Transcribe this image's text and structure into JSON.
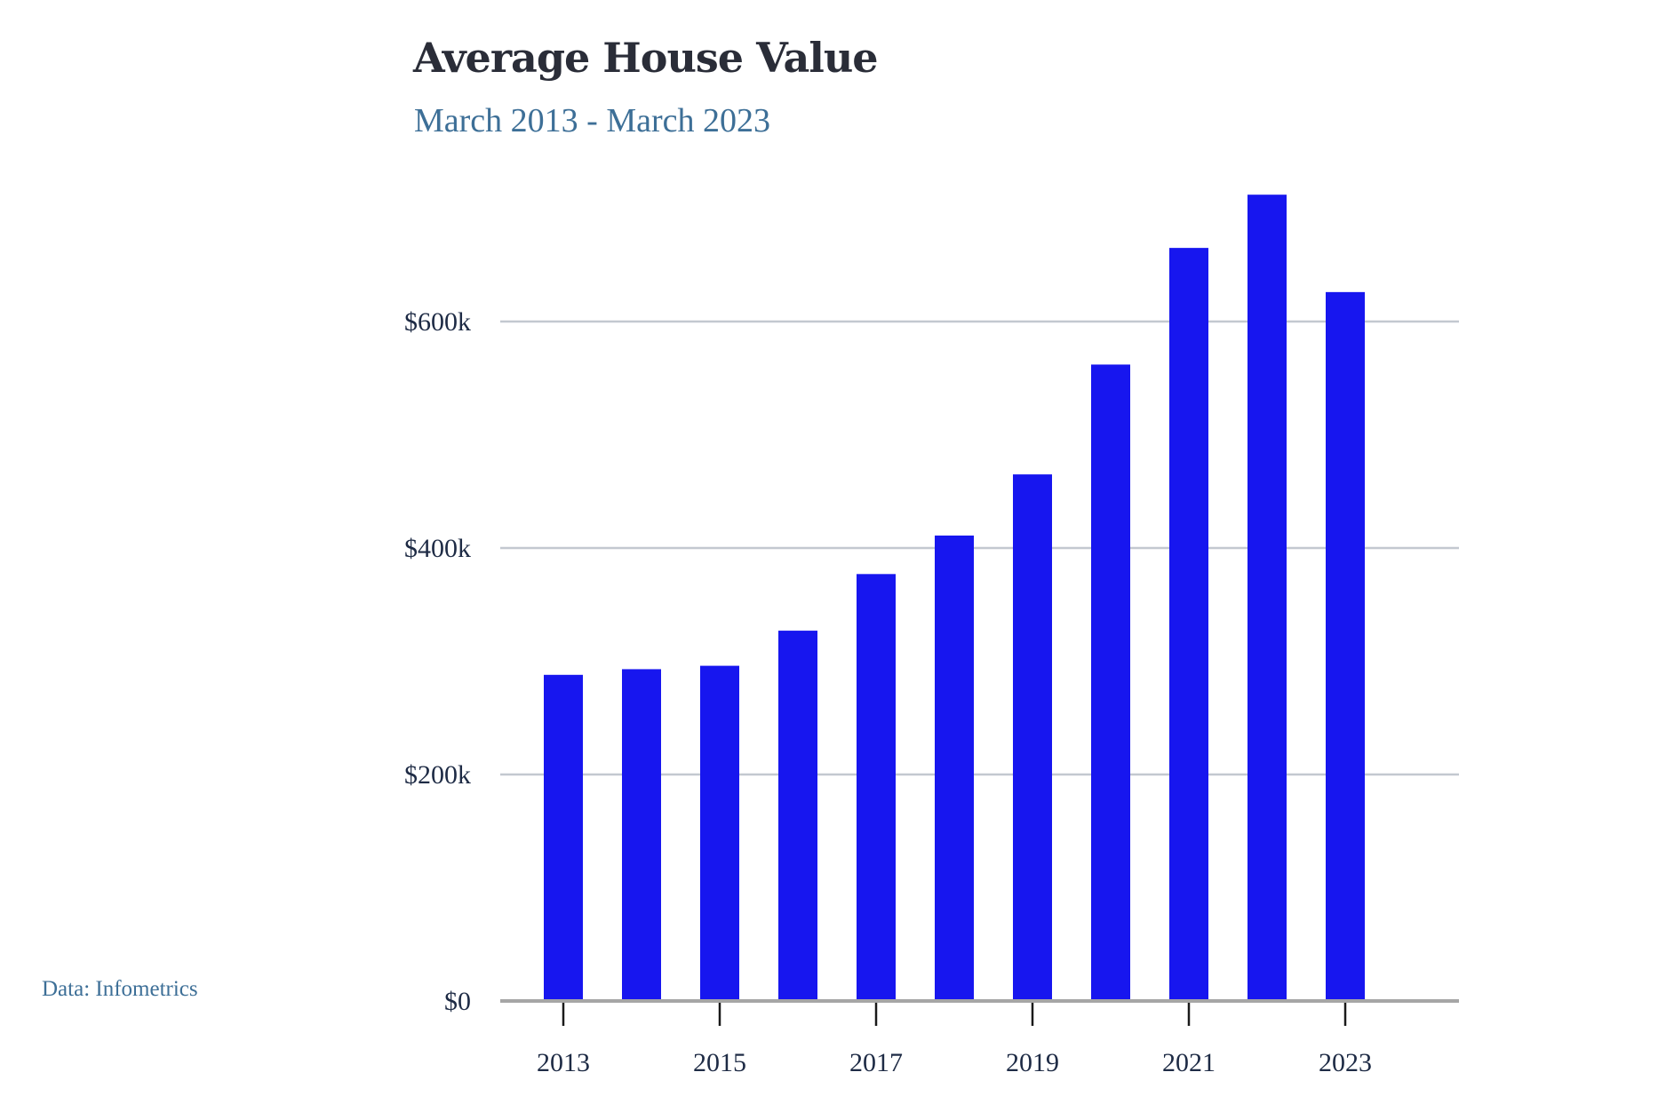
{
  "chart_data": {
    "type": "bar",
    "title": "Average House Value",
    "subtitle": "March 2013 - March 2023",
    "source": "Data: Infometrics",
    "categories": [
      "2013",
      "2014",
      "2015",
      "2016",
      "2017",
      "2018",
      "2019",
      "2020",
      "2021",
      "2022",
      "2023"
    ],
    "values": [
      288000,
      293000,
      296000,
      327000,
      377000,
      411000,
      465000,
      562000,
      665000,
      712000,
      626000
    ],
    "x_tick_labels": [
      "2013",
      "2015",
      "2017",
      "2019",
      "2021",
      "2023"
    ],
    "y_ticks": [
      {
        "value": 0,
        "label": "$0"
      },
      {
        "value": 200000,
        "label": "$200k"
      },
      {
        "value": 400000,
        "label": "$400k"
      },
      {
        "value": 600000,
        "label": "$600k"
      }
    ],
    "ylim": [
      0,
      720000
    ],
    "grid": true,
    "bar_color": "#1716ef",
    "grid_color": "#c3c8d0",
    "xlabel": "",
    "ylabel": ""
  }
}
